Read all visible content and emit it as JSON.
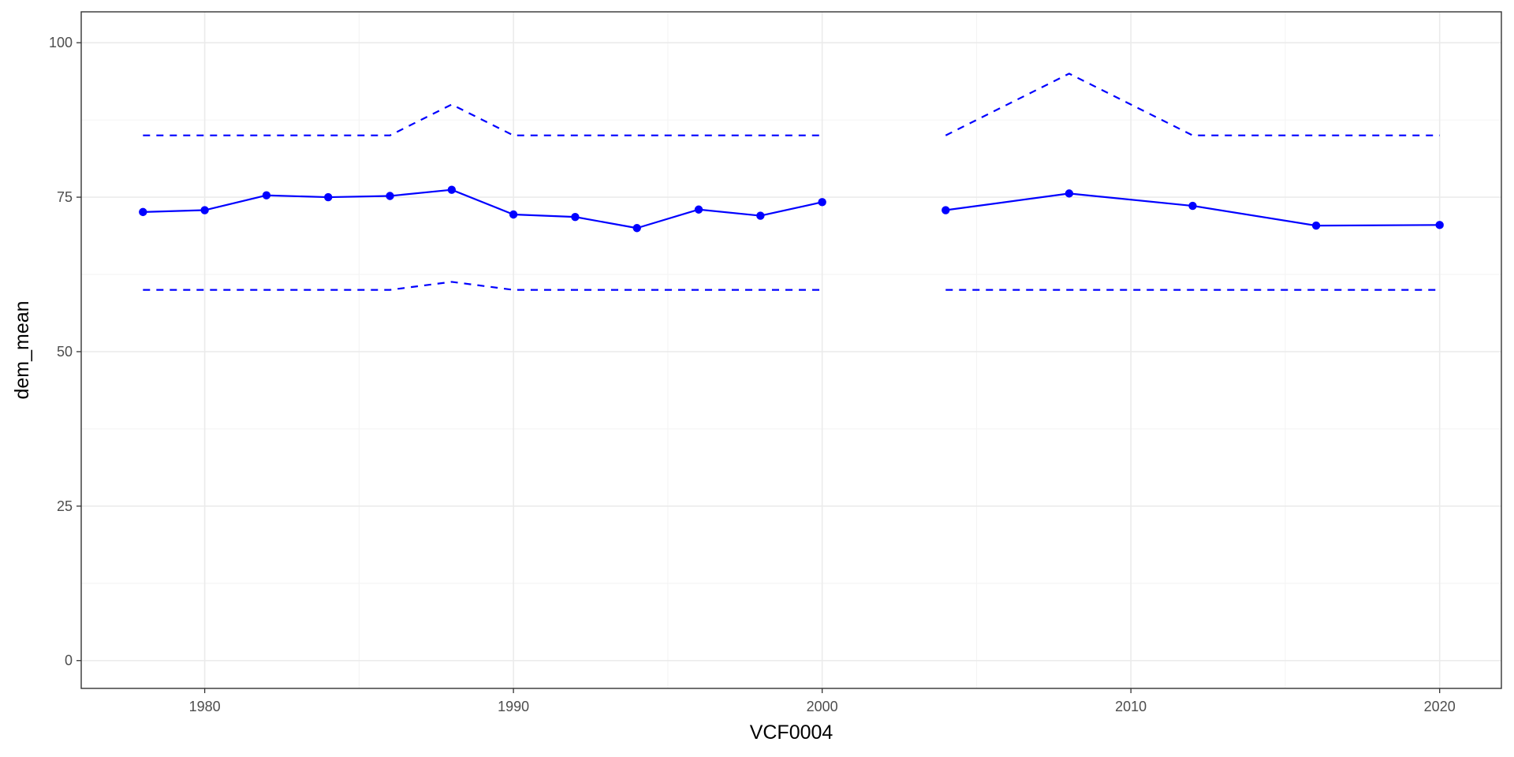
{
  "chart_data": {
    "type": "line",
    "title": "",
    "xlabel": "VCF0004",
    "ylabel": "dem_mean",
    "xlim": [
      1976,
      2022
    ],
    "ylim": [
      -4.5,
      105
    ],
    "x_ticks": [
      1980,
      1990,
      2000,
      2010,
      2020
    ],
    "x_tick_labels": [
      "1980",
      "1990",
      "2000",
      "2010",
      "2020"
    ],
    "y_ticks": [
      0,
      25,
      50,
      75,
      100
    ],
    "y_tick_labels": [
      "0",
      "25",
      "50",
      "75",
      "100"
    ],
    "grid": true,
    "color": "#0000ff",
    "series": [
      {
        "style": "solid-with-points",
        "segments": [
          {
            "x": [
              1978,
              1980,
              1982,
              1984,
              1986,
              1988,
              1990,
              1992,
              1994,
              1996,
              1998,
              2000
            ],
            "y": [
              72.6,
              72.9,
              75.3,
              75.0,
              75.2,
              76.2,
              72.2,
              71.8,
              70.0,
              73.0,
              72.0,
              74.2
            ]
          },
          {
            "x": [
              2004,
              2008,
              2012,
              2016,
              2020
            ],
            "y": [
              72.9,
              75.6,
              73.6,
              70.4,
              70.5
            ]
          }
        ]
      },
      {
        "style": "dashed",
        "segments": [
          {
            "x": [
              1978,
              1980,
              1982,
              1984,
              1986,
              1988,
              1990,
              1992,
              1994,
              1996,
              1998,
              2000
            ],
            "y": [
              85,
              85,
              85,
              85,
              85,
              90,
              85,
              85,
              85,
              85,
              85,
              85
            ]
          },
          {
            "x": [
              2004,
              2008,
              2012,
              2016,
              2020
            ],
            "y": [
              85,
              95,
              85,
              85,
              85
            ]
          }
        ]
      },
      {
        "style": "dashed",
        "segments": [
          {
            "x": [
              1978,
              1980,
              1982,
              1984,
              1986,
              1988,
              1990,
              1992,
              1994,
              1996,
              1998,
              2000
            ],
            "y": [
              60,
              60,
              60,
              60,
              60,
              61.3,
              60,
              60,
              60,
              60,
              60,
              60
            ]
          },
          {
            "x": [
              2004,
              2008,
              2012,
              2016,
              2020
            ],
            "y": [
              60,
              60,
              60,
              60,
              60
            ]
          }
        ]
      }
    ]
  }
}
